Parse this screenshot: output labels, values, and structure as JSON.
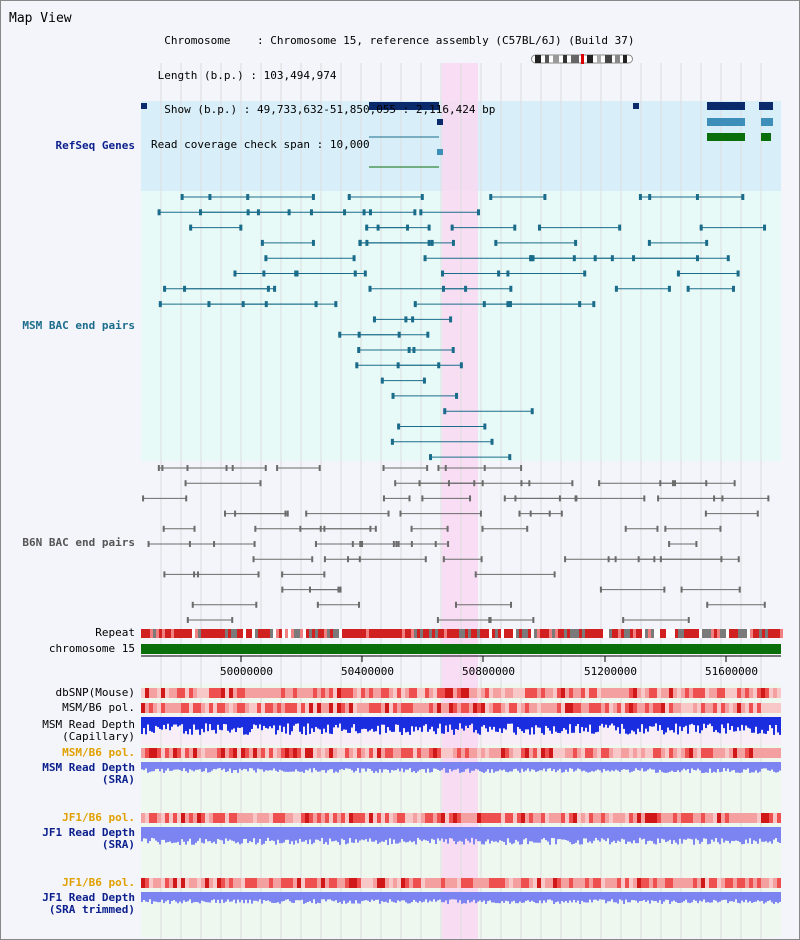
{
  "page": {
    "title": "Map View"
  },
  "info": {
    "chromosome_label": "Chromosome",
    "chromosome_value": "Chromosome 15, reference assembly (C57BL/6J) (Build 37)",
    "length_label": "Length (b.p.)",
    "length_value": "103,494,974",
    "show_label": "Show (b.p.)",
    "show_value": "49,733,632-51,850,055 : 2,116,424 bp",
    "coverage_label": "Read coverage check span",
    "coverage_value": "10,000"
  },
  "tracks": {
    "refseq": "RefSeq Genes",
    "msm_bac": "MSM BAC end pairs",
    "b6n_bac": "B6N BAC end pairs",
    "repeat": "Repeat",
    "chromosome": "chromosome 15",
    "dbsnp": "dbSNP(Mouse)",
    "msm_b6_pol_1": "MSM/B6 pol.",
    "msm_depth_cap_1": "MSM Read Depth",
    "msm_depth_cap_2": "(Capillary)",
    "msm_b6_pol_2": "MSM/B6 pol.",
    "msm_depth_sra_1": "MSM Read Depth",
    "msm_depth_sra_2": "(SRA)",
    "jf1_b6_pol_1": "JF1/B6 pol.",
    "jf1_depth_sra_1": "JF1 Read Depth",
    "jf1_depth_sra_2": "(SRA)",
    "jf1_b6_pol_2": "JF1/B6 pol.",
    "jf1_depth_trim_1": "JF1 Read Depth",
    "jf1_depth_trim_2": "(SRA trimmed)"
  },
  "axis": {
    "ticks": [
      "50000000",
      "50400000",
      "50800000",
      "51200000",
      "51600000"
    ]
  },
  "colors": {
    "refseq_bg": "#d8eef9",
    "msm_bac_bg": "#e8faf8",
    "b6n_bg": "#f4f4fb",
    "highlight": "#f9d8f2",
    "gene_dark": "#0b2a6b",
    "gene_mid": "#3d8fba",
    "gene_green": "#0a6e0a",
    "msm_line": "#1a6c8a",
    "b6n_line": "#6b6b6b",
    "chromosome_bar": "#0a6e0a",
    "depth_cap": "#1a2ee0",
    "depth_sra": "#7c84f2",
    "pol_red": "#e83030"
  },
  "view": {
    "start_bp": 49733632,
    "end_bp": 51850055
  }
}
